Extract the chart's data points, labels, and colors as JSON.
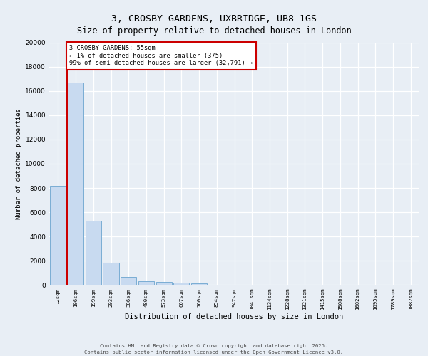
{
  "title_line1": "3, CROSBY GARDENS, UXBRIDGE, UB8 1GS",
  "title_line2": "Size of property relative to detached houses in London",
  "xlabel": "Distribution of detached houses by size in London",
  "ylabel": "Number of detached properties",
  "bar_color": "#c8daf0",
  "bar_edge_color": "#7aadd4",
  "categories": [
    "12sqm",
    "106sqm",
    "199sqm",
    "293sqm",
    "386sqm",
    "480sqm",
    "573sqm",
    "667sqm",
    "760sqm",
    "854sqm",
    "947sqm",
    "1041sqm",
    "1134sqm",
    "1228sqm",
    "1321sqm",
    "1415sqm",
    "1508sqm",
    "1602sqm",
    "1695sqm",
    "1789sqm",
    "1882sqm"
  ],
  "values": [
    8200,
    16700,
    5300,
    1800,
    650,
    280,
    210,
    150,
    100,
    0,
    0,
    0,
    0,
    0,
    0,
    0,
    0,
    0,
    0,
    0,
    0
  ],
  "ylim": [
    0,
    20000
  ],
  "yticks": [
    0,
    2000,
    4000,
    6000,
    8000,
    10000,
    12000,
    14000,
    16000,
    18000,
    20000
  ],
  "annotation_text": "3 CROSBY GARDENS: 55sqm\n← 1% of detached houses are smaller (375)\n99% of semi-detached houses are larger (32,791) →",
  "annotation_box_color": "#ffffff",
  "annotation_border_color": "#cc0000",
  "vline_color": "#cc0000",
  "footer_line1": "Contains HM Land Registry data © Crown copyright and database right 2025.",
  "footer_line2": "Contains public sector information licensed under the Open Government Licence v3.0.",
  "background_color": "#e8eef5",
  "grid_color": "#ffffff"
}
